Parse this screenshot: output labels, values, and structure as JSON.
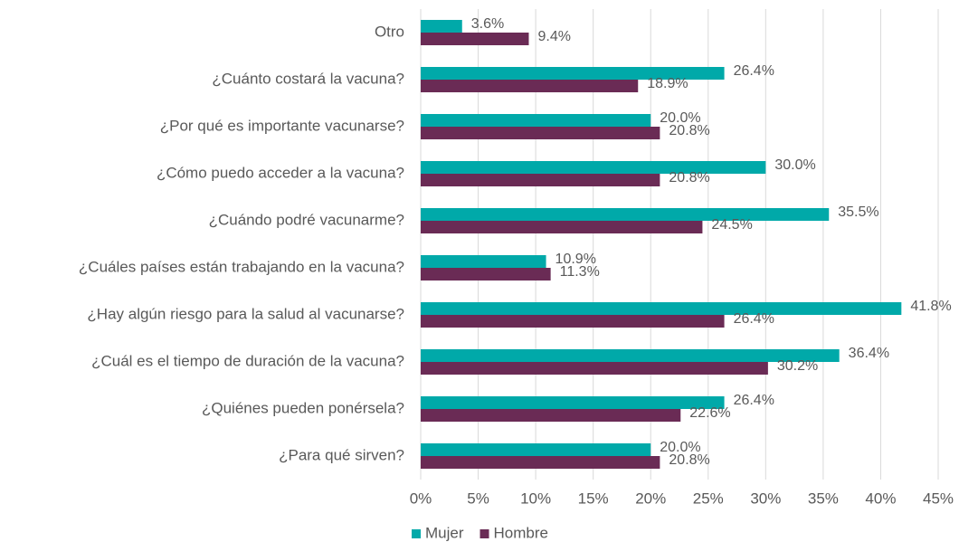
{
  "chart_data": {
    "type": "barh",
    "categories": [
      "Otro",
      "¿Cuánto costará la vacuna?",
      "¿Por qué es importante vacunarse?",
      "¿Cómo puedo acceder a la vacuna?",
      "¿Cuándo podré vacunarme?",
      "¿Cuáles países están trabajando en la vacuna?",
      "¿Hay algún riesgo para la salud al vacunarse?",
      "¿Cuál es el tiempo de duración de la vacuna?",
      "¿Quiénes pueden ponérsela?",
      "¿Para qué sirven?"
    ],
    "series": [
      {
        "name": "Mujer",
        "color": "#00a9a9",
        "values": [
          3.6,
          26.4,
          20.0,
          30.0,
          35.5,
          10.9,
          41.8,
          36.4,
          26.4,
          20.0
        ],
        "value_labels": [
          "3.6%",
          "26.4%",
          "20.0%",
          "30.0%",
          "35.5%",
          "10.9%",
          "41.8%",
          "36.4%",
          "26.4%",
          "20.0%"
        ]
      },
      {
        "name": "Hombre",
        "color": "#6a2b55",
        "values": [
          9.4,
          18.9,
          20.8,
          20.8,
          24.5,
          11.3,
          26.4,
          30.2,
          22.6,
          20.8
        ],
        "value_labels": [
          "9.4%",
          "18.9%",
          "20.8%",
          "20.8%",
          "24.5%",
          "11.3%",
          "26.4%",
          "30.2%",
          "22.6%",
          "20.8%"
        ]
      }
    ],
    "xlim": [
      0,
      45
    ],
    "xticks": [
      {
        "value": 0,
        "label": "0%"
      },
      {
        "value": 5,
        "label": "5%"
      },
      {
        "value": 10,
        "label": "10%"
      },
      {
        "value": 15,
        "label": "15%"
      },
      {
        "value": 20,
        "label": "20%"
      },
      {
        "value": 25,
        "label": "25%"
      },
      {
        "value": 30,
        "label": "30%"
      },
      {
        "value": 35,
        "label": "35%"
      },
      {
        "value": 40,
        "label": "40%"
      },
      {
        "value": 45,
        "label": "45%"
      }
    ],
    "grid": true,
    "legend": "bottom"
  }
}
